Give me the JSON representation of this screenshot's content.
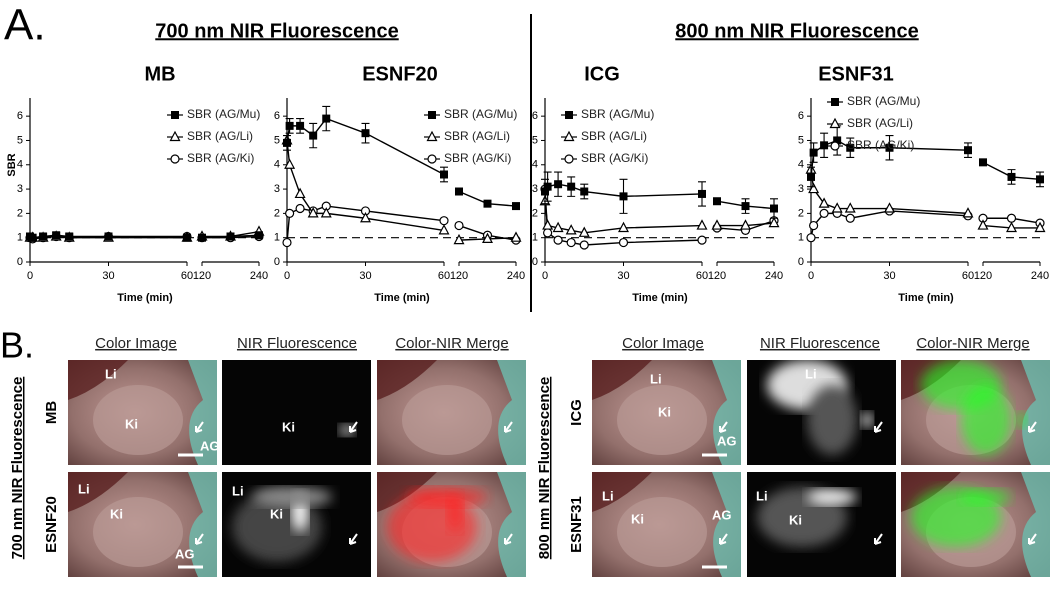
{
  "panel_a": {
    "label": "A.",
    "group_titles": [
      "700 nm NIR Fluorescence",
      "800 nm NIR Fluorescence"
    ]
  },
  "chart_data": [
    {
      "type": "line",
      "title": "MB",
      "y_label": "SBR",
      "x_label": "Time (min)",
      "x": [
        0,
        1,
        5,
        10,
        15,
        30,
        60,
        120,
        180,
        240
      ],
      "xlim_segments": [
        [
          0,
          60
        ],
        [
          120,
          240
        ]
      ],
      "xticks": [
        0,
        30,
        60,
        120,
        240
      ],
      "ylim": [
        0,
        6.5
      ],
      "yticks": [
        0,
        1,
        2,
        3,
        4,
        5,
        6
      ],
      "reference_line": 1,
      "legend_position": "upper right",
      "series": [
        {
          "name": "SBR (AG/Mu)",
          "marker": "filled-square",
          "color": "#000000",
          "values": [
            1.05,
            1.0,
            1.05,
            1.1,
            1.05,
            1.05,
            1.0,
            1.0,
            1.05,
            1.1
          ],
          "errors": [
            0.1,
            0.05,
            0.1,
            0.1,
            0.1,
            0.05,
            0.05,
            0.05,
            0.05,
            0.05
          ]
        },
        {
          "name": "SBR (AG/Li)",
          "marker": "open-triangle",
          "color": "#000000",
          "values": [
            1.0,
            1.0,
            1.0,
            1.05,
            1.0,
            1.0,
            1.0,
            1.05,
            1.05,
            1.25
          ]
        },
        {
          "name": "SBR (AG/Ki)",
          "marker": "open-circle",
          "color": "#000000",
          "values": [
            1.0,
            0.95,
            1.0,
            1.05,
            1.0,
            1.05,
            1.05,
            1.0,
            1.0,
            1.05
          ]
        }
      ]
    },
    {
      "type": "line",
      "title": "ESNF20",
      "x_label": "Time (min)",
      "x": [
        0,
        1,
        5,
        10,
        15,
        30,
        60,
        120,
        180,
        240
      ],
      "xlim_segments": [
        [
          0,
          60
        ],
        [
          120,
          240
        ]
      ],
      "xticks": [
        0,
        30,
        60,
        120,
        240
      ],
      "ylim": [
        0,
        6.5
      ],
      "yticks": [
        0,
        1,
        2,
        3,
        4,
        5,
        6
      ],
      "reference_line": 1,
      "legend_position": "upper right",
      "series": [
        {
          "name": "SBR (AG/Mu)",
          "marker": "filled-square",
          "color": "#000000",
          "values": [
            4.9,
            5.6,
            5.6,
            5.2,
            5.9,
            5.3,
            3.6,
            2.9,
            2.4,
            2.3
          ],
          "errors": [
            0.3,
            0.3,
            0.3,
            0.5,
            0.5,
            0.4,
            0.3,
            0.1,
            0.1,
            0.1
          ]
        },
        {
          "name": "SBR (AG/Li)",
          "marker": "open-triangle",
          "color": "#000000",
          "values": [
            5.0,
            4.0,
            2.8,
            2.0,
            2.0,
            1.8,
            1.3,
            0.9,
            0.95,
            1.0
          ]
        },
        {
          "name": "SBR (AG/Ki)",
          "marker": "open-circle",
          "color": "#000000",
          "values": [
            0.8,
            2.0,
            2.2,
            2.1,
            2.3,
            2.1,
            1.7,
            1.5,
            1.1,
            0.9
          ]
        }
      ]
    },
    {
      "type": "line",
      "title": "ICG",
      "x_label": "Time (min)",
      "x": [
        0,
        1,
        5,
        10,
        15,
        30,
        60,
        120,
        180,
        240
      ],
      "xlim_segments": [
        [
          0,
          60
        ],
        [
          120,
          240
        ]
      ],
      "xticks": [
        0,
        30,
        60,
        120,
        240
      ],
      "ylim": [
        0,
        6.5
      ],
      "yticks": [
        0,
        1,
        2,
        3,
        4,
        5,
        6
      ],
      "reference_line": 1,
      "legend_position": "upper left",
      "series": [
        {
          "name": "SBR (AG/Mu)",
          "marker": "filled-square",
          "color": "#000000",
          "values": [
            2.9,
            3.1,
            3.2,
            3.1,
            2.9,
            2.7,
            2.8,
            2.5,
            2.3,
            2.2
          ],
          "errors": [
            0.5,
            0.6,
            0.5,
            0.4,
            0.3,
            0.7,
            0.5,
            0.1,
            0.3,
            0.4
          ]
        },
        {
          "name": "SBR (AG/Li)",
          "marker": "open-triangle",
          "color": "#000000",
          "values": [
            2.5,
            1.5,
            1.4,
            1.3,
            1.2,
            1.4,
            1.5,
            1.5,
            1.5,
            1.6
          ]
        },
        {
          "name": "SBR (AG/Ki)",
          "marker": "open-circle",
          "color": "#000000",
          "values": [
            3.0,
            1.2,
            0.9,
            0.8,
            0.7,
            0.8,
            0.9,
            1.4,
            1.3,
            1.7
          ]
        }
      ]
    },
    {
      "type": "line",
      "title": "ESNF31",
      "x_label": "Time (min)",
      "x": [
        0,
        1,
        5,
        10,
        15,
        30,
        60,
        120,
        180,
        240
      ],
      "xlim_segments": [
        [
          0,
          60
        ],
        [
          120,
          240
        ]
      ],
      "xticks": [
        0,
        30,
        60,
        120,
        240
      ],
      "ylim": [
        0,
        6.5
      ],
      "yticks": [
        0,
        1,
        2,
        3,
        4,
        5,
        6
      ],
      "reference_line": 1,
      "legend_position": "upper left",
      "series": [
        {
          "name": "SBR (AG/Mu)",
          "marker": "filled-square",
          "color": "#000000",
          "values": [
            3.5,
            4.5,
            4.8,
            5.0,
            4.7,
            4.7,
            4.6,
            4.1,
            3.5,
            3.4
          ],
          "errors": [
            0.4,
            0.4,
            0.5,
            0.6,
            0.4,
            0.5,
            0.3,
            0.1,
            0.3,
            0.3
          ]
        },
        {
          "name": "SBR (AG/Li)",
          "marker": "open-triangle",
          "color": "#000000",
          "values": [
            3.8,
            3.0,
            2.4,
            2.2,
            2.2,
            2.2,
            2.0,
            1.5,
            1.4,
            1.4
          ]
        },
        {
          "name": "SBR (AG/Ki)",
          "marker": "open-circle",
          "color": "#000000",
          "values": [
            1.0,
            1.5,
            2.0,
            2.0,
            1.8,
            2.1,
            1.9,
            1.8,
            1.8,
            1.6
          ]
        }
      ]
    }
  ],
  "panel_b": {
    "label": "B.",
    "groups": [
      {
        "title": "700 nm NIR Fluorescence",
        "columns": [
          "Color Image",
          "NIR Fluorescence",
          "Color-NIR Merge"
        ],
        "rows": [
          {
            "label": "MB",
            "images": [
              {
                "annotations": [
                  "Li",
                  "Ki",
                  "AG"
                ]
              },
              {
                "annotations": [
                  "Ki"
                ]
              },
              {}
            ]
          },
          {
            "label": "ESNF20",
            "overlay_color": "#ff2020",
            "images": [
              {
                "annotations": [
                  "Li",
                  "Ki",
                  "AG"
                ]
              },
              {
                "annotations": [
                  "Li",
                  "Ki"
                ]
              },
              {}
            ]
          }
        ]
      },
      {
        "title": "800 nm NIR Fluorescence",
        "columns": [
          "Color Image",
          "NIR Fluorescence",
          "Color-NIR Merge"
        ],
        "rows": [
          {
            "label": "ICG",
            "overlay_color": "#20ff20",
            "images": [
              {
                "annotations": [
                  "Li",
                  "Ki",
                  "AG"
                ]
              },
              {
                "annotations": [
                  "Li"
                ]
              },
              {}
            ]
          },
          {
            "label": "ESNF31",
            "overlay_color": "#20ff20",
            "images": [
              {
                "annotations": [
                  "Li",
                  "Ki",
                  "AG"
                ]
              },
              {
                "annotations": [
                  "Li",
                  "Ki"
                ]
              },
              {}
            ]
          }
        ]
      }
    ]
  }
}
